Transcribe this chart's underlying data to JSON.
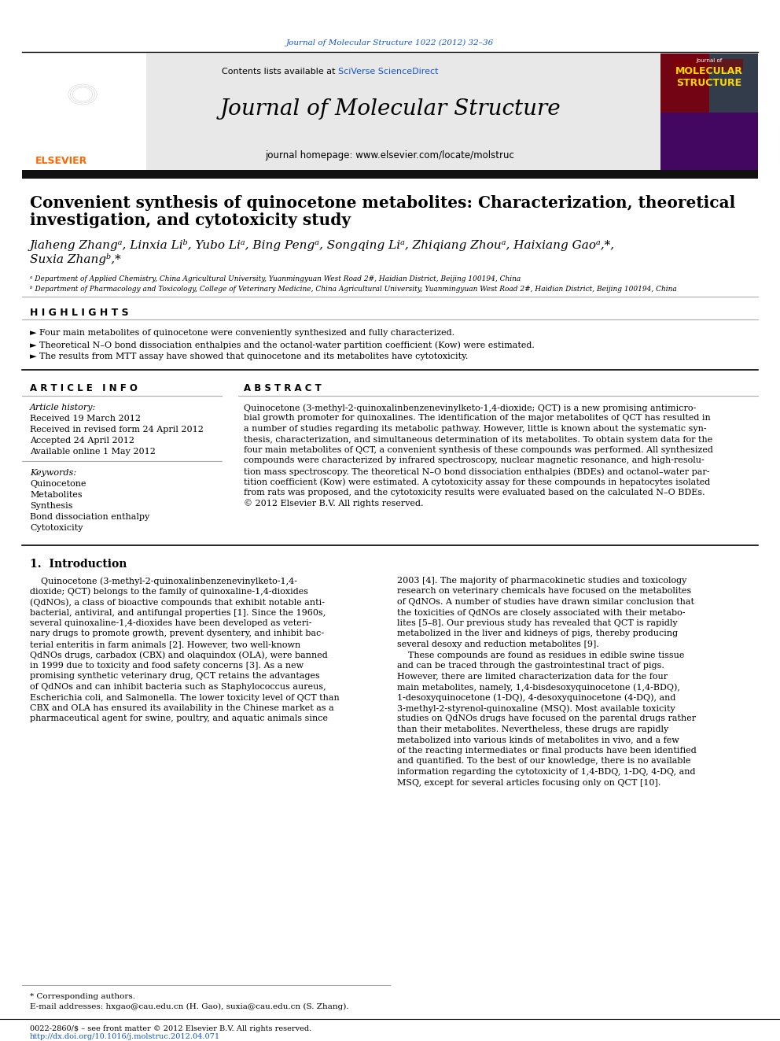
{
  "page_bg": "#ffffff",
  "top_citation": "Journal of Molecular Structure 1022 (2012) 32–36",
  "journal_title": "Journal of Molecular Structure",
  "contents_text": "Contents lists available at ",
  "sciverse_text": "SciVerse ScienceDirect",
  "homepage_text": "journal homepage: www.elsevier.com/locate/molstruc",
  "article_title_line1": "Convenient synthesis of quinocetone metabolites: Characterization, theoretical",
  "article_title_line2": "investigation, and cytotoxicity study",
  "authors_line1": "Jiaheng Zhangᵃ, Linxia Liᵇ, Yubo Liᵃ, Bing Pengᵃ, Songqing Liᵃ, Zhiqiang Zhouᵃ, Haixiang Gaoᵃ,*,",
  "authors_line2": "Suxia Zhangᵇ,*",
  "affil_a": "ᵃ Department of Applied Chemistry, China Agricultural University, Yuanmingyuan West Road 2#, Haidian District, Beijing 100194, China",
  "affil_b": "ᵇ Department of Pharmacology and Toxicology, College of Veterinary Medicine, China Agricultural University, Yuanmingyuan West Road 2#, Haidian District, Beijing 100194, China",
  "highlights_title": "H I G H L I G H T S",
  "highlight1": "► Four main metabolites of quinocetone were conveniently synthesized and fully characterized.",
  "highlight2": "► Theoretical N–O bond dissociation enthalpies and the octanol-water partition coefficient (Kow) were estimated.",
  "highlight3": "► The results from MTT assay have showed that quinocetone and its metabolites have cytotoxicity.",
  "article_info_title": "A R T I C L E   I N F O",
  "abstract_title": "A B S T R A C T",
  "article_history_label": "Article history:",
  "received": "Received 19 March 2012",
  "received_revised": "Received in revised form 24 April 2012",
  "accepted": "Accepted 24 April 2012",
  "available": "Available online 1 May 2012",
  "keywords_label": "Keywords:",
  "keyword1": "Quinocetone",
  "keyword2": "Metabolites",
  "keyword3": "Synthesis",
  "keyword4": "Bond dissociation enthalpy",
  "keyword5": "Cytotoxicity",
  "abstract_lines": [
    "Quinocetone (3-methyl-2-quinoxalinbenzenevinylketo-1,4-dioxide; QCT) is a new promising antimicro-",
    "bial growth promoter for quinoxalines. The identification of the major metabolites of QCT has resulted in",
    "a number of studies regarding its metabolic pathway. However, little is known about the systematic syn-",
    "thesis, characterization, and simultaneous determination of its metabolites. To obtain system data for the",
    "four main metabolites of QCT, a convenient synthesis of these compounds was performed. All synthesized",
    "compounds were characterized by infrared spectroscopy, nuclear magnetic resonance, and high-resolu-",
    "tion mass spectroscopy. The theoretical N–O bond dissociation enthalpies (BDEs) and octanol–water par-",
    "tition coefficient (Kow) were estimated. A cytotoxicity assay for these compounds in hepatocytes isolated",
    "from rats was proposed, and the cytotoxicity results were evaluated based on the calculated N–O BDEs.",
    "© 2012 Elsevier B.V. All rights reserved."
  ],
  "intro_title": "1.  Introduction",
  "intro_col1_lines": [
    "    Quinocetone (3-methyl-2-quinoxalinbenzenevinylketo-1,4-",
    "dioxide; QCT) belongs to the family of quinoxaline-1,4-dioxides",
    "(QdNOs), a class of bioactive compounds that exhibit notable anti-",
    "bacterial, antiviral, and antifungal properties [1]. Since the 1960s,",
    "several quinoxaline-1,4-dioxides have been developed as veteri-",
    "nary drugs to promote growth, prevent dysentery, and inhibit bac-",
    "terial enteritis in farm animals [2]. However, two well-known",
    "QdNOs drugs, carbadox (CBX) and olaquindox (OLA), were banned",
    "in 1999 due to toxicity and food safety concerns [3]. As a new",
    "promising synthetic veterinary drug, QCT retains the advantages",
    "of QdNOs and can inhibit bacteria such as Staphylococcus aureus,",
    "Escherichia coli, and Salmonella. The lower toxicity level of QCT than",
    "CBX and OLA has ensured its availability in the Chinese market as a",
    "pharmaceutical agent for swine, poultry, and aquatic animals since"
  ],
  "intro_col2_lines": [
    "2003 [4]. The majority of pharmacokinetic studies and toxicology",
    "research on veterinary chemicals have focused on the metabolites",
    "of QdNOs. A number of studies have drawn similar conclusion that",
    "the toxicities of QdNOs are closely associated with their metabo-",
    "lites [5–8]. Our previous study has revealed that QCT is rapidly",
    "metabolized in the liver and kidneys of pigs, thereby producing",
    "several desoxy and reduction metabolites [9].",
    "    These compounds are found as residues in edible swine tissue",
    "and can be traced through the gastrointestinal tract of pigs.",
    "However, there are limited characterization data for the four",
    "main metabolites, namely, 1,4-bisdesoxyquinocetone (1,4-BDQ),",
    "1-desoxyquinocetone (1-DQ), 4-desoxyquinocetone (4-DQ), and",
    "3-methyl-2-styrenol-quinoxaline (MSQ). Most available toxicity",
    "studies on QdNOs drugs have focused on the parental drugs rather",
    "than their metabolites. Nevertheless, these drugs are rapidly",
    "metabolized into various kinds of metabolites in vivo, and a few",
    "of the reacting intermediates or final products have been identified",
    "and quantified. To the best of our knowledge, there is no available",
    "information regarding the cytotoxicity of 1,4-BDQ, 1-DQ, 4-DQ, and",
    "MSQ, except for several articles focusing only on QCT [10]."
  ],
  "footnote_star": "* Corresponding authors.",
  "footnote_email": "E-mail addresses: hxgao@cau.edu.cn (H. Gao), suxia@cau.edu.cn (S. Zhang).",
  "issn_line": "0022-2860/$ – see front matter © 2012 Elsevier B.V. All rights reserved.",
  "doi_line": "http://dx.doi.org/10.1016/j.molstruc.2012.04.071",
  "link_color": "#1155CC",
  "orange_color": "#FF6600",
  "cover_title_top": "Journal of",
  "cover_title_main": "MOLECULAR\nSTRUCTURE"
}
